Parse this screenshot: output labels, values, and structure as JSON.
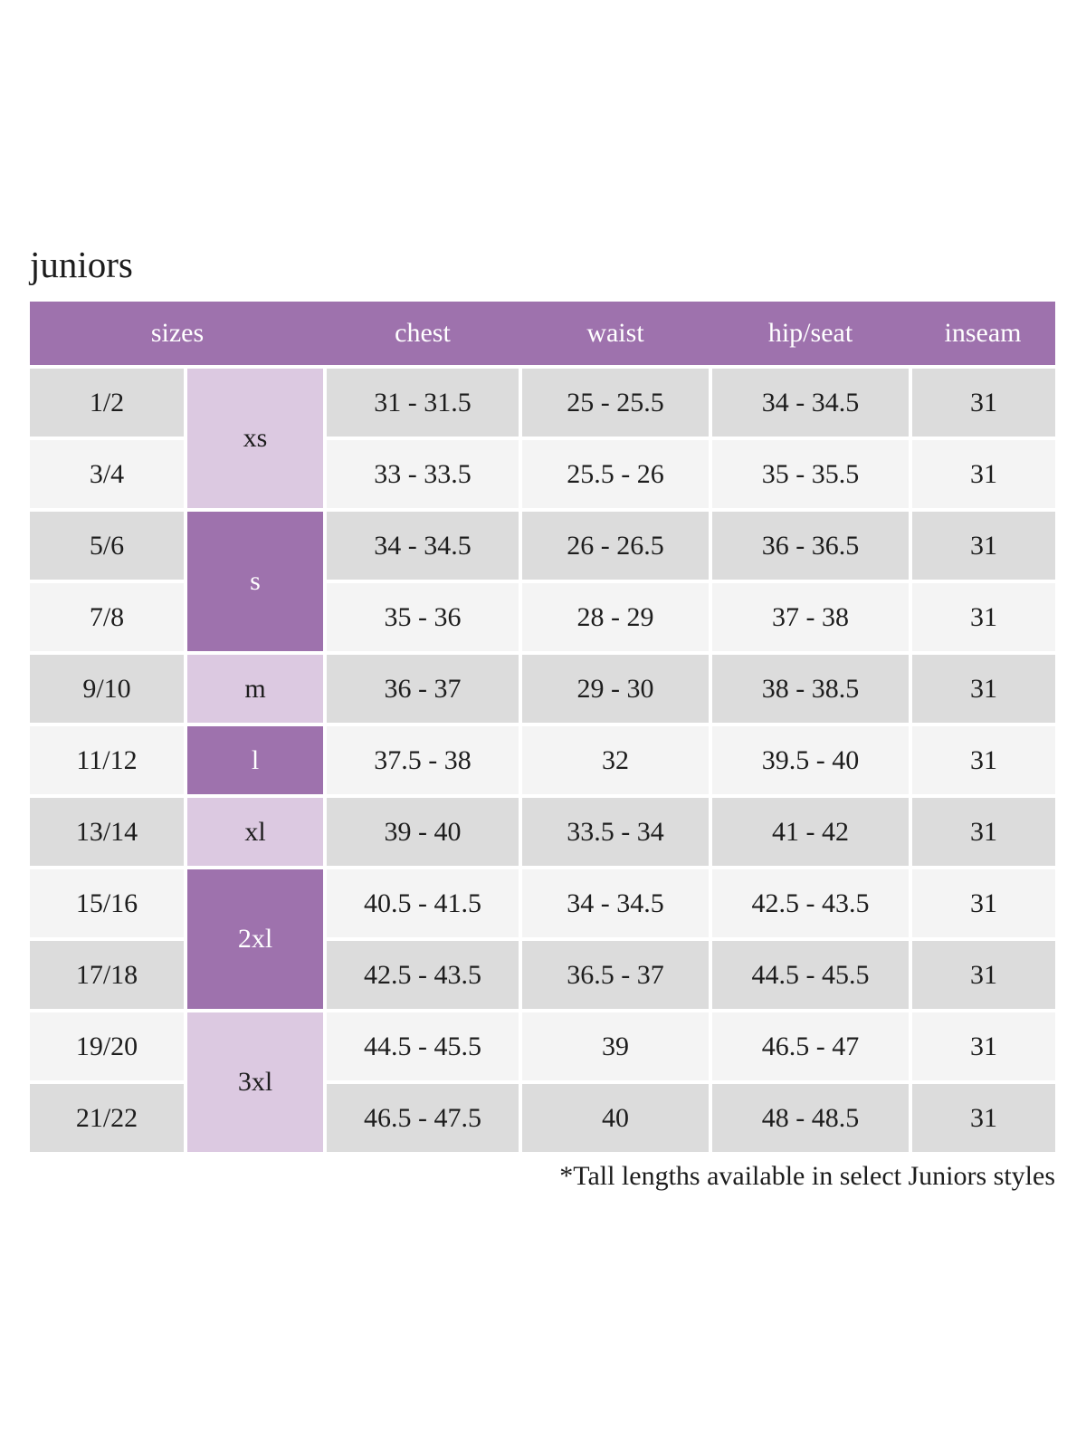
{
  "page": {
    "title": "juniors",
    "footnote": "*Tall lengths available in select Juniors styles"
  },
  "colors": {
    "header_purple": "#9E72AD",
    "lavender": "#DCC9E1",
    "row_gray": "#DCDCDC",
    "row_light": "#F4F4F4",
    "text_dark": "#1D1D1D",
    "text_white": "#FFFFFF"
  },
  "table": {
    "headers": [
      "sizes",
      "chest",
      "waist",
      "hip/seat",
      "inseam"
    ],
    "size_groups": [
      {
        "label": "xs",
        "span": 2,
        "shade": "light"
      },
      {
        "label": "s",
        "span": 2,
        "shade": "dark"
      },
      {
        "label": "m",
        "span": 1,
        "shade": "light"
      },
      {
        "label": "l",
        "span": 1,
        "shade": "dark"
      },
      {
        "label": "xl",
        "span": 1,
        "shade": "light"
      },
      {
        "label": "2xl",
        "span": 2,
        "shade": "dark"
      },
      {
        "label": "3xl",
        "span": 2,
        "shade": "light"
      }
    ],
    "rows": [
      {
        "size": "1/2",
        "chest": "31 - 31.5",
        "waist": "25 - 25.5",
        "hip_seat": "34 - 34.5",
        "inseam": "31"
      },
      {
        "size": "3/4",
        "chest": "33 - 33.5",
        "waist": "25.5 - 26",
        "hip_seat": "35 - 35.5",
        "inseam": "31"
      },
      {
        "size": "5/6",
        "chest": "34 - 34.5",
        "waist": "26 - 26.5",
        "hip_seat": "36 - 36.5",
        "inseam": "31"
      },
      {
        "size": "7/8",
        "chest": "35 - 36",
        "waist": "28 - 29",
        "hip_seat": "37 - 38",
        "inseam": "31"
      },
      {
        "size": "9/10",
        "chest": "36 - 37",
        "waist": "29 - 30",
        "hip_seat": "38 - 38.5",
        "inseam": "31"
      },
      {
        "size": "11/12",
        "chest": "37.5 - 38",
        "waist": "32",
        "hip_seat": "39.5 - 40",
        "inseam": "31"
      },
      {
        "size": "13/14",
        "chest": "39 - 40",
        "waist": "33.5 - 34",
        "hip_seat": "41 - 42",
        "inseam": "31"
      },
      {
        "size": "15/16",
        "chest": "40.5 - 41.5",
        "waist": "34 - 34.5",
        "hip_seat": "42.5 - 43.5",
        "inseam": "31"
      },
      {
        "size": "17/18",
        "chest": "42.5 - 43.5",
        "waist": "36.5 - 37",
        "hip_seat": "44.5 - 45.5",
        "inseam": "31"
      },
      {
        "size": "19/20",
        "chest": "44.5 - 45.5",
        "waist": "39",
        "hip_seat": "46.5 - 47",
        "inseam": "31"
      },
      {
        "size": "21/22",
        "chest": "46.5 - 47.5",
        "waist": "40",
        "hip_seat": "48 - 48.5",
        "inseam": "31"
      }
    ]
  }
}
